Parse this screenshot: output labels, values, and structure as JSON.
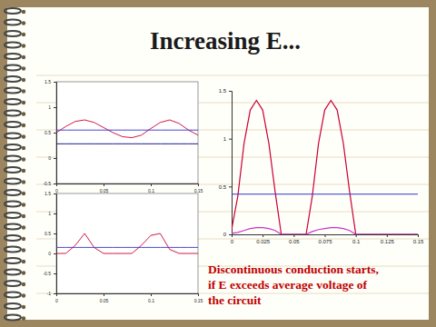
{
  "title": "Increasing E...",
  "annotation": [
    "Discontinuous conduction starts,",
    "if E exceeds average voltage of",
    "the circuit"
  ],
  "chart_data": [
    {
      "type": "line",
      "x": [
        0,
        0.01,
        0.02,
        0.03,
        0.04,
        0.05,
        0.06,
        0.07,
        0.08,
        0.09,
        0.1,
        0.11,
        0.12,
        0.13,
        0.14,
        0.15
      ],
      "series": [
        {
          "color": "#cc0033",
          "values": [
            0.5,
            0.62,
            0.72,
            0.75,
            0.7,
            0.6,
            0.5,
            0.42,
            0.4,
            0.45,
            0.58,
            0.7,
            0.75,
            0.68,
            0.55,
            0.45
          ]
        },
        {
          "color": "#3333cc",
          "values": [
            0.55,
            0.55,
            0.55,
            0.55,
            0.55,
            0.55,
            0.55,
            0.55,
            0.55,
            0.55,
            0.55,
            0.55,
            0.55,
            0.55,
            0.55,
            0.55
          ]
        },
        {
          "color": "#000080",
          "values": [
            0.28,
            0.28,
            0.28,
            0.28,
            0.28,
            0.28,
            0.28,
            0.28,
            0.28,
            0.28,
            0.28,
            0.28,
            0.28,
            0.28,
            0.28,
            0.28
          ]
        }
      ],
      "xlim": [
        0,
        0.15
      ],
      "ylim": [
        -0.5,
        1.5
      ],
      "xticks": [
        0,
        0.05,
        0.1,
        0.15
      ],
      "yticks": [
        -0.5,
        0,
        0.5,
        1,
        1.5
      ]
    },
    {
      "type": "line",
      "x": [
        0,
        0.01,
        0.02,
        0.03,
        0.04,
        0.05,
        0.06,
        0.07,
        0.08,
        0.09,
        0.1,
        0.11,
        0.12,
        0.13,
        0.14,
        0.15
      ],
      "series": [
        {
          "color": "#cc0033",
          "values": [
            0,
            0,
            0.2,
            0.5,
            0.15,
            0,
            0,
            0,
            0,
            0.2,
            0.45,
            0.5,
            0.1,
            0,
            0,
            0
          ]
        },
        {
          "color": "#3333cc",
          "values": [
            0.15,
            0.15,
            0.15,
            0.15,
            0.15,
            0.15,
            0.15,
            0.15,
            0.15,
            0.15,
            0.15,
            0.15,
            0.15,
            0.15,
            0.15,
            0.15
          ]
        }
      ],
      "xlim": [
        0,
        0.15
      ],
      "ylim": [
        -1,
        1.5
      ],
      "xticks": [
        0,
        0.05,
        0.1,
        0.15
      ],
      "yticks": [
        -1,
        -0.5,
        0,
        0.5,
        1,
        1.5
      ]
    },
    {
      "type": "line",
      "x": [
        0,
        0.005,
        0.01,
        0.015,
        0.02,
        0.025,
        0.03,
        0.035,
        0.04,
        0.045,
        0.05,
        0.055,
        0.06,
        0.065,
        0.07,
        0.075,
        0.08,
        0.085,
        0.09,
        0.095,
        0.1,
        0.105,
        0.11,
        0.115,
        0.12,
        0.125,
        0.13,
        0.135,
        0.14,
        0.145,
        0.15
      ],
      "series": [
        {
          "color": "#cc0033",
          "values": [
            0.05,
            0.4,
            0.95,
            1.3,
            1.4,
            1.3,
            0.95,
            0.45,
            0,
            0,
            0,
            0,
            0,
            0.4,
            0.95,
            1.3,
            1.4,
            1.3,
            0.95,
            0.45,
            0,
            0,
            0,
            0,
            0,
            0,
            0,
            0,
            0,
            0,
            0
          ]
        },
        {
          "color": "#3333cc",
          "values": [
            0.42,
            0.42,
            0.42,
            0.42,
            0.42,
            0.42,
            0.42,
            0.42,
            0.42,
            0.42,
            0.42,
            0.42,
            0.42,
            0.42,
            0.42,
            0.42,
            0.42,
            0.42,
            0.42,
            0.42,
            0.42,
            0.42,
            0.42,
            0.42,
            0.42,
            0.42,
            0.42,
            0.42,
            0.42,
            0.42,
            0.42
          ]
        },
        {
          "color": "#cc33cc",
          "values": [
            0.01,
            0.02,
            0.04,
            0.06,
            0.07,
            0.07,
            0.06,
            0.04,
            0,
            0,
            0,
            0,
            0,
            0.03,
            0.05,
            0.06,
            0.07,
            0.07,
            0.06,
            0.04,
            0,
            0,
            0,
            0,
            0,
            0,
            0,
            0,
            0,
            0,
            0
          ]
        }
      ],
      "xlim": [
        0,
        0.15
      ],
      "ylim": [
        0,
        1.5
      ],
      "xticks": [
        0,
        0.025,
        0.05,
        0.075,
        0.1,
        0.125,
        0.15
      ],
      "yticks": [
        0,
        0.5,
        1,
        1.5
      ]
    }
  ]
}
